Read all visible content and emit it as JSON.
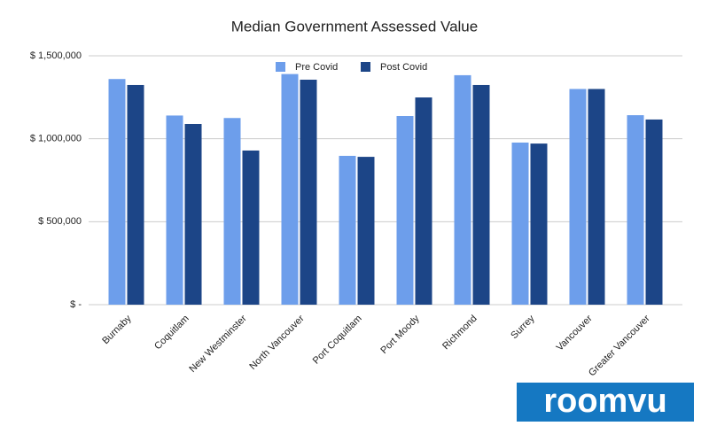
{
  "chart_data": {
    "type": "bar",
    "title": "Median Government Assessed Value",
    "categories": [
      "Burnaby",
      "Coquitlam",
      "New Westminster",
      "North Vancouver",
      "Port Coquitlam",
      "Port Moody",
      "Richmond",
      "Surrey",
      "Vancouver",
      "Greater Vancouver"
    ],
    "series": [
      {
        "name": "Pre Covid",
        "color": "#6d9eeb",
        "values": [
          1360000,
          1140000,
          1125000,
          1390000,
          897000,
          1137000,
          1383000,
          977000,
          1300000,
          1142000
        ]
      },
      {
        "name": "Post Covid",
        "color": "#1c4587",
        "values": [
          1324000,
          1089000,
          929000,
          1356000,
          891000,
          1249000,
          1324000,
          971000,
          1300000,
          1116000
        ]
      }
    ],
    "ylim": [
      0,
      1500000
    ],
    "yticks": [
      {
        "value": 0,
        "label": "$ -"
      },
      {
        "value": 500000,
        "label": "$ 500,000"
      },
      {
        "value": 1000000,
        "label": "$ 1,000,000"
      },
      {
        "value": 1500000,
        "label": "$ 1,500,000"
      }
    ],
    "grid": true,
    "legend": "top"
  },
  "watermark": "roomvu"
}
